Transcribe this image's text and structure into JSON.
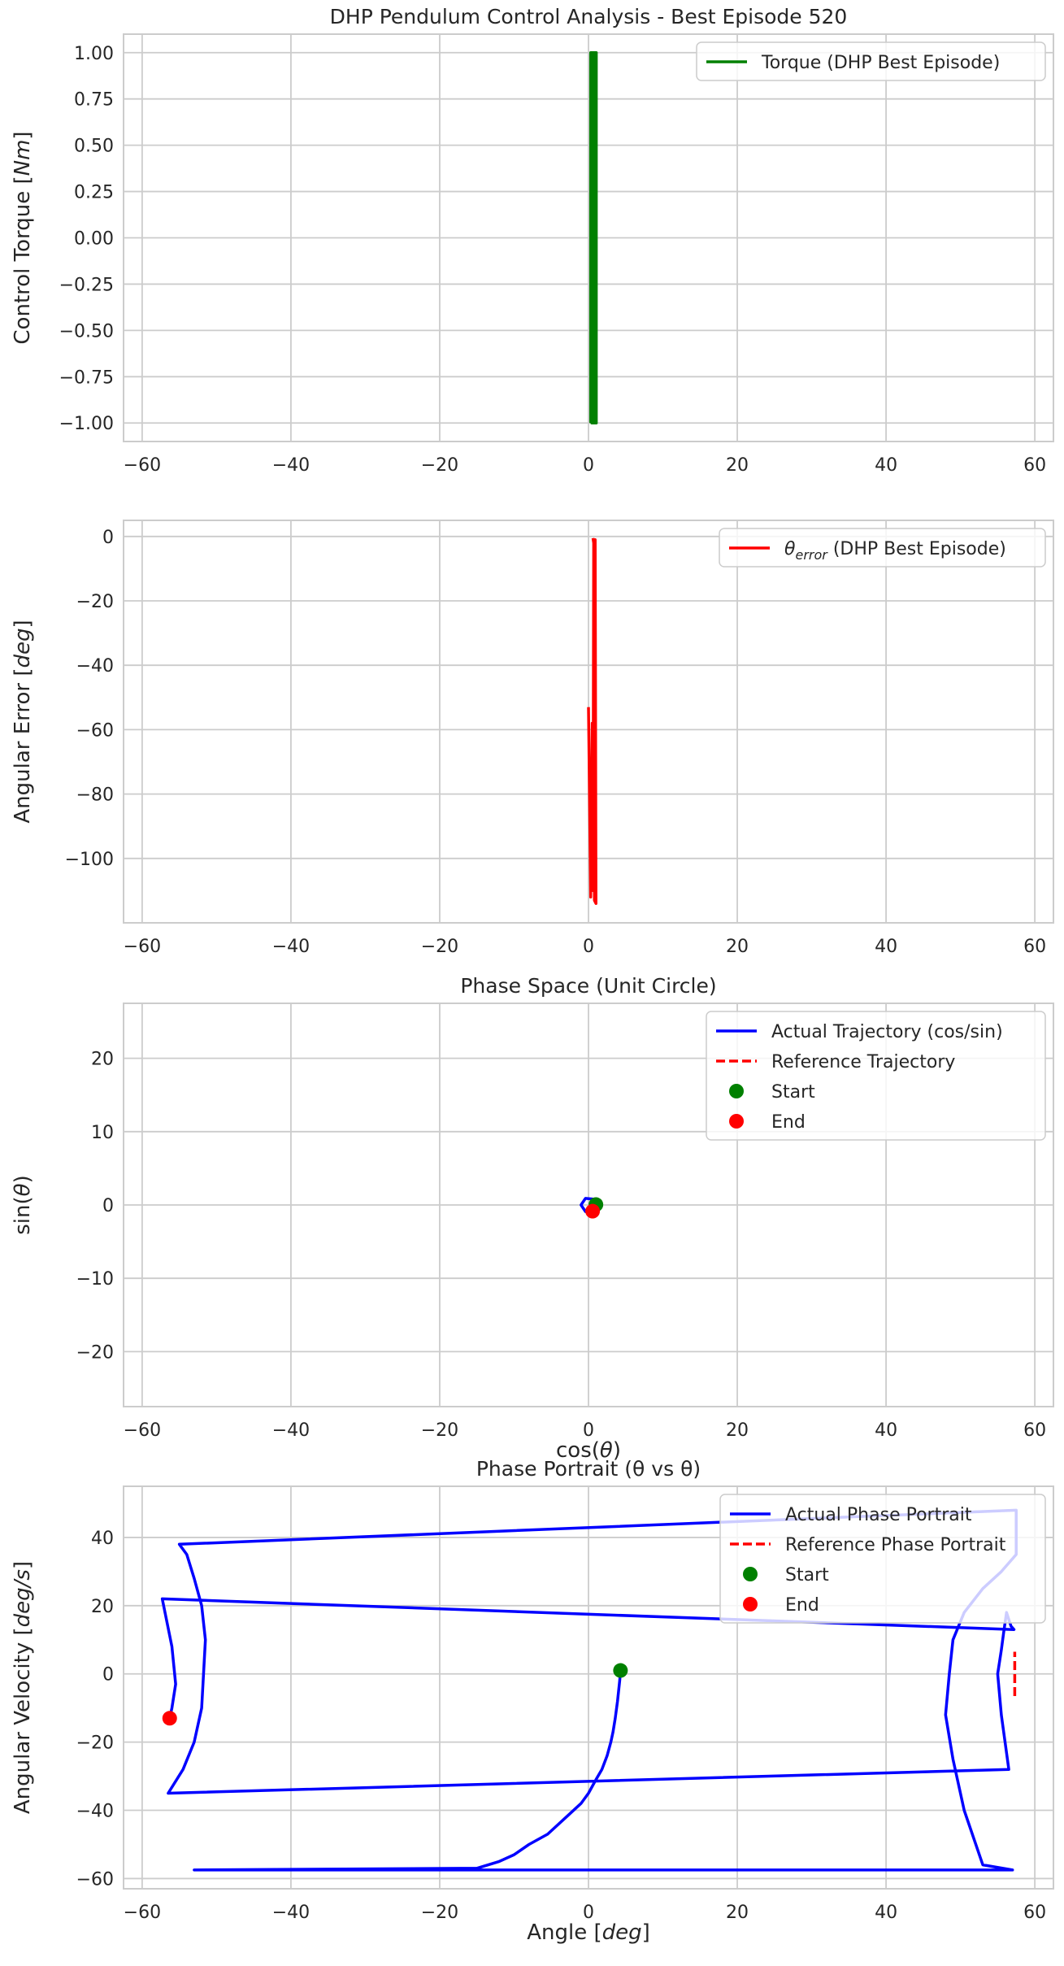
{
  "chart_data": [
    {
      "type": "line",
      "title": "DHP Pendulum Control Analysis - Best Episode 520",
      "xlabel": "",
      "ylabel": "Control Torque [Nm]",
      "ylabel_parts": [
        "Control Torque [",
        "Nm",
        "]"
      ],
      "xlim": [
        -62.5,
        62.5
      ],
      "ylim": [
        -1.1,
        1.1
      ],
      "xticks": [
        -60,
        -40,
        -20,
        0,
        20,
        40,
        60
      ],
      "xtick_labels": [
        "−60",
        "−40",
        "−20",
        "0",
        "20",
        "40",
        "60"
      ],
      "yticks": [
        1.0,
        0.75,
        0.5,
        0.25,
        0.0,
        -0.25,
        -0.5,
        -0.75,
        -1.0
      ],
      "ytick_labels": [
        "1.00",
        "0.75",
        "0.50",
        "0.25",
        "0.00",
        "−0.25",
        "−0.50",
        "−0.75",
        "−1.00"
      ],
      "grid": true,
      "legend": "top-right",
      "series": [
        {
          "name": "Torque (DHP Best Episode)",
          "label_parts": [
            "Torque (DHP Best Episode)"
          ],
          "color": "#008000",
          "style": "solid",
          "points": [
            [
              0.3,
              -1.0
            ],
            [
              0.3,
              1.0
            ],
            [
              0.45,
              1.0
            ],
            [
              0.45,
              -1.0
            ],
            [
              0.6,
              -1.0
            ],
            [
              0.6,
              1.0
            ],
            [
              0.75,
              1.0
            ],
            [
              0.75,
              -1.0
            ],
            [
              0.9,
              -1.0
            ],
            [
              0.9,
              1.0
            ],
            [
              1.05,
              1.0
            ],
            [
              1.05,
              -1.0
            ],
            [
              0.55,
              -1.0
            ],
            [
              0.55,
              1.0
            ],
            [
              0.85,
              1.0
            ],
            [
              0.85,
              -1.0
            ]
          ]
        }
      ]
    },
    {
      "type": "line",
      "title": "",
      "xlabel": "",
      "ylabel": "Angular Error [deg]",
      "ylabel_parts": [
        "Angular Error [",
        "deg",
        "]"
      ],
      "xlim": [
        -62.5,
        62.5
      ],
      "ylim": [
        -120,
        5
      ],
      "xticks": [
        -60,
        -40,
        -20,
        0,
        20,
        40,
        60
      ],
      "xtick_labels": [
        "−60",
        "−40",
        "−20",
        "0",
        "20",
        "40",
        "60"
      ],
      "yticks": [
        0,
        -20,
        -40,
        -60,
        -80,
        -100
      ],
      "ytick_labels": [
        "0",
        "−20",
        "−40",
        "−60",
        "−80",
        "−100"
      ],
      "grid": true,
      "legend": "top-right",
      "series": [
        {
          "name": "θerror (DHP Best Episode)",
          "label_parts": [
            "θ",
            "error",
            " (DHP Best Episode)"
          ],
          "color": "#ff0000",
          "style": "solid",
          "points": [
            [
              0.0,
              -53
            ],
            [
              0.3,
              -112
            ],
            [
              0.5,
              -58
            ],
            [
              0.6,
              -110
            ],
            [
              0.7,
              -3
            ],
            [
              0.8,
              -60
            ],
            [
              0.9,
              -1
            ],
            [
              1.0,
              -114
            ],
            [
              0.8,
              -113
            ],
            [
              0.7,
              -2
            ],
            [
              0.6,
              -0.5
            ]
          ]
        }
      ]
    },
    {
      "type": "line",
      "title": "Phase Space (Unit Circle)",
      "xlabel": "cos(θ)",
      "xlabel_parts": [
        "cos(",
        "θ",
        ")"
      ],
      "ylabel": "sin(θ)",
      "ylabel_parts": [
        "sin(",
        "θ",
        ")"
      ],
      "xlim": [
        -62.5,
        62.5
      ],
      "ylim": [
        -27.5,
        27.5
      ],
      "xticks": [
        -60,
        -40,
        -20,
        0,
        20,
        40,
        60
      ],
      "xtick_labels": [
        "−60",
        "−40",
        "−20",
        "0",
        "20",
        "40",
        "60"
      ],
      "yticks": [
        20,
        10,
        0,
        -10,
        -20
      ],
      "ytick_labels": [
        "20",
        "10",
        "0",
        "−10",
        "−20"
      ],
      "grid": true,
      "legend": "top-right",
      "series": [
        {
          "name": "Actual Trajectory (cos/sin)",
          "label_parts": [
            "Actual Trajectory (cos/sin)"
          ],
          "color": "#0000ff",
          "style": "solid",
          "points": [
            [
              1.0,
              0.05
            ],
            [
              0.6,
              0.8
            ],
            [
              -0.4,
              0.9
            ],
            [
              -1.0,
              0.0
            ],
            [
              -0.4,
              -0.9
            ],
            [
              0.6,
              -0.8
            ],
            [
              0.55,
              -0.85
            ]
          ]
        },
        {
          "name": "Reference Trajectory",
          "label_parts": [
            "Reference Trajectory"
          ],
          "color": "#ff0000",
          "style": "dashed",
          "points": [
            [
              1.0,
              0.0
            ],
            [
              1.0,
              0.0
            ]
          ]
        },
        {
          "name": "Start",
          "label_parts": [
            "Start"
          ],
          "color": "#008000",
          "style": "marker",
          "points": [
            [
              1.0,
              0.05
            ]
          ]
        },
        {
          "name": "End",
          "label_parts": [
            "End"
          ],
          "color": "#ff0000",
          "style": "marker",
          "points": [
            [
              0.55,
              -0.85
            ]
          ]
        }
      ]
    },
    {
      "type": "line",
      "title": "Phase Portrait (θ vs θ)",
      "xlabel": "Angle [deg]",
      "xlabel_parts": [
        "Angle [",
        "deg",
        "]"
      ],
      "ylabel": "Angular Velocity [deg/s]",
      "ylabel_parts": [
        "Angular Velocity [",
        "deg/s",
        "]"
      ],
      "xlim": [
        -62.5,
        62.5
      ],
      "ylim": [
        -63,
        55
      ],
      "xticks": [
        -60,
        -40,
        -20,
        0,
        20,
        40,
        60
      ],
      "xtick_labels": [
        "−60",
        "−40",
        "−20",
        "0",
        "20",
        "40",
        "60"
      ],
      "yticks": [
        40,
        20,
        0,
        -20,
        -40,
        -60
      ],
      "ytick_labels": [
        "40",
        "20",
        "0",
        "−20",
        "−40",
        "−60"
      ],
      "grid": true,
      "legend": "top-right",
      "series": [
        {
          "name": "Actual Phase Portrait",
          "label_parts": [
            "Actual Phase Portrait"
          ],
          "color": "#0000ff",
          "style": "solid",
          "points": [
            [
              4.3,
              1.0
            ],
            [
              4.2,
              -2
            ],
            [
              3.9,
              -8
            ],
            [
              3.6,
              -13
            ],
            [
              3.3,
              -17
            ],
            [
              3.0,
              -20
            ],
            [
              2.5,
              -24
            ],
            [
              1.8,
              -28
            ],
            [
              1.0,
              -31
            ],
            [
              0.0,
              -35
            ],
            [
              -1.0,
              -38
            ],
            [
              -3.0,
              -42
            ],
            [
              -5.5,
              -47
            ],
            [
              -8.0,
              -50
            ],
            [
              -10.0,
              -53
            ],
            [
              -12.0,
              -55
            ],
            [
              -15.0,
              -57
            ],
            [
              -53.0,
              -57.5
            ],
            [
              57.0,
              -57.5
            ],
            [
              53.0,
              -56
            ],
            [
              50.5,
              -40
            ],
            [
              49.0,
              -25
            ],
            [
              48.0,
              -12
            ],
            [
              48.5,
              0
            ],
            [
              49.0,
              10
            ],
            [
              50.5,
              18
            ],
            [
              53.0,
              25
            ],
            [
              55.5,
              30
            ],
            [
              57.5,
              35
            ],
            [
              57.5,
              42
            ],
            [
              57.5,
              48
            ],
            [
              -55.0,
              38
            ],
            [
              -54.0,
              35
            ],
            [
              -53.0,
              28
            ],
            [
              -52.0,
              20
            ],
            [
              -51.5,
              10
            ],
            [
              -52.0,
              -10
            ],
            [
              -53.0,
              -20
            ],
            [
              -54.5,
              -28
            ],
            [
              -56.5,
              -35
            ],
            [
              56.5,
              -28
            ],
            [
              55.5,
              -12
            ],
            [
              55.0,
              0
            ],
            [
              55.5,
              7
            ],
            [
              55.8,
              12
            ],
            [
              56.2,
              18
            ],
            [
              56.8,
              14
            ],
            [
              57.2,
              13
            ],
            [
              -57.3,
              22
            ],
            [
              -56.0,
              8
            ],
            [
              -55.5,
              -3
            ],
            [
              -56.0,
              -10
            ],
            [
              -56.3,
              -13
            ]
          ]
        },
        {
          "name": "Reference Phase Portrait",
          "label_parts": [
            "Reference Phase Portrait"
          ],
          "color": "#ff0000",
          "style": "dashed",
          "points": [
            [
              57.3,
              -6.5
            ],
            [
              57.3,
              6.5
            ]
          ]
        },
        {
          "name": "Start",
          "label_parts": [
            "Start"
          ],
          "color": "#008000",
          "style": "marker",
          "points": [
            [
              4.3,
              1.0
            ]
          ]
        },
        {
          "name": "End",
          "label_parts": [
            "End"
          ],
          "color": "#ff0000",
          "style": "marker",
          "points": [
            [
              -56.3,
              -13.0
            ]
          ]
        }
      ]
    }
  ]
}
